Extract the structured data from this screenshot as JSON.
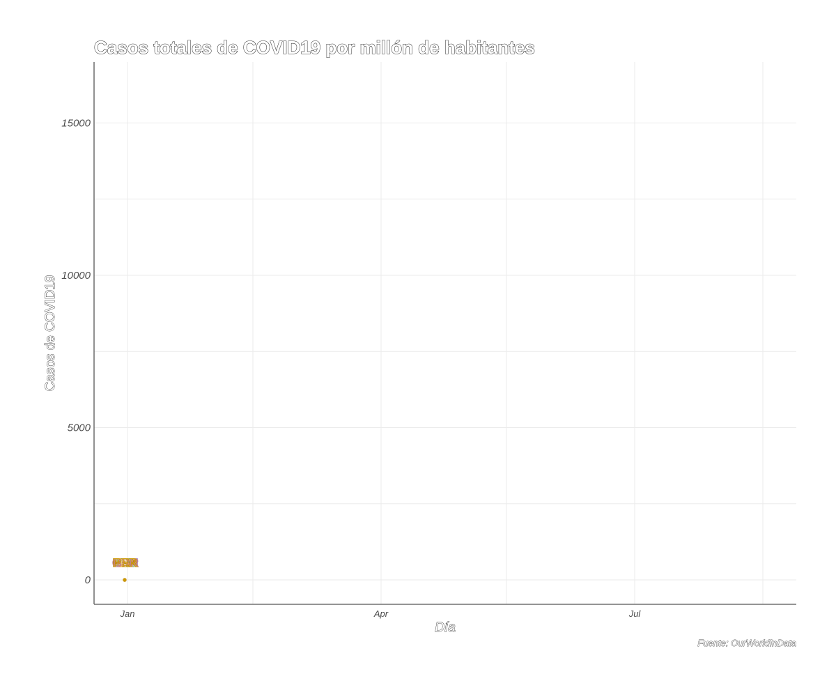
{
  "chart_data": {
    "type": "scatter",
    "title": "Casos totales de COVID19 por millón de habitantes",
    "xlabel": "Día",
    "ylabel": "Casos de COVID19",
    "caption": "Fuente: OurWorldInData",
    "x_ticks": [
      {
        "date": "2020-01-01",
        "label": "Jan"
      },
      {
        "date": "2020-04-01",
        "label": "Apr"
      },
      {
        "date": "2020-07-01",
        "label": "Jul"
      }
    ],
    "x_minor_dates": [
      "2020-02-15",
      "2020-05-16",
      "2020-08-16"
    ],
    "xlim": [
      "2019-12-20",
      "2020-08-28"
    ],
    "y_ticks": [
      0,
      5000,
      10000,
      15000
    ],
    "y_minor_ticks": [
      2500,
      7500,
      12500
    ],
    "ylim": [
      -800,
      17000
    ],
    "grid": true,
    "series": [
      {
        "name": "CHN",
        "color": "#9a7fd1",
        "points": [
          {
            "x": "2019-12-31",
            "y": 0
          }
        ]
      },
      {
        "name": "USA",
        "color": "#e07b91",
        "points": [
          {
            "x": "2019-12-31",
            "y": 0
          }
        ]
      },
      {
        "name": "ITA",
        "color": "#6aa84f",
        "points": [
          {
            "x": "2019-12-31",
            "y": 0
          }
        ]
      },
      {
        "name": "ESP",
        "color": "#e69138",
        "points": [
          {
            "x": "2019-12-31",
            "y": 0
          }
        ]
      },
      {
        "name": "BRA",
        "color": "#b58900",
        "points": [
          {
            "x": "2019-12-31",
            "y": 0
          }
        ]
      },
      {
        "name": "GBR",
        "color": "#c27ba0",
        "points": [
          {
            "x": "2019-12-31",
            "y": 0
          }
        ]
      },
      {
        "name": "PER",
        "color": "#cc9900",
        "points": [
          {
            "x": "2019-12-31",
            "y": 0
          }
        ]
      }
    ]
  }
}
